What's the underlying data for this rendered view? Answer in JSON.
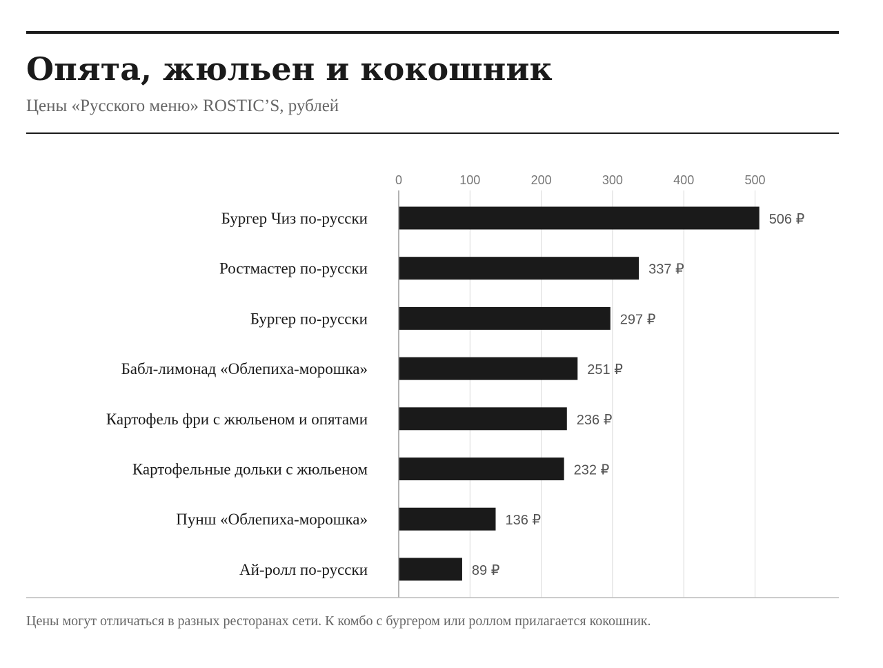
{
  "title": "Опята, жюльен и кокошник",
  "subtitle": "Цены «Русского меню» ROSTIC’S, рублей",
  "footnote": "Цены могут отличаться в разных ресторанах сети. К комбо с бургером или роллом прилагается кокошник.",
  "colors": {
    "bar": "#1a1a1a",
    "grid": "#d9d9d9",
    "tick_text": "#777777",
    "value_text": "#555555",
    "category_text": "#1a1a1a",
    "rule": "#1a1a1a"
  },
  "chart_data": {
    "type": "bar",
    "orientation": "horizontal",
    "title": "Опята, жюльен и кокошник",
    "subtitle": "Цены «Русского меню» ROSTIC’S, рублей",
    "categories": [
      "Бургер Чиз по-русски",
      "Ростмастер по-русски",
      "Бургер по-русски",
      "Бабл-лимонад «Облепиха-морошка»",
      "Картофель фри с жюльеном и опятами",
      "Картофельные дольки с жюльеном",
      "Пунш «Облепиха-морошка»",
      "Ай-ролл по-русски"
    ],
    "values": [
      506,
      337,
      297,
      251,
      236,
      232,
      136,
      89
    ],
    "value_labels": [
      "506 ₽",
      "337 ₽",
      "297 ₽",
      "251 ₽",
      "236 ₽",
      "232 ₽",
      "136 ₽",
      "89 ₽"
    ],
    "x_ticks": [
      0,
      100,
      200,
      300,
      400,
      500
    ],
    "x_tick_labels": [
      "0",
      "100",
      "200",
      "300",
      "400",
      "500"
    ],
    "xlim": [
      0,
      500
    ],
    "axis_position": "top",
    "grid": true,
    "legend": "none"
  }
}
